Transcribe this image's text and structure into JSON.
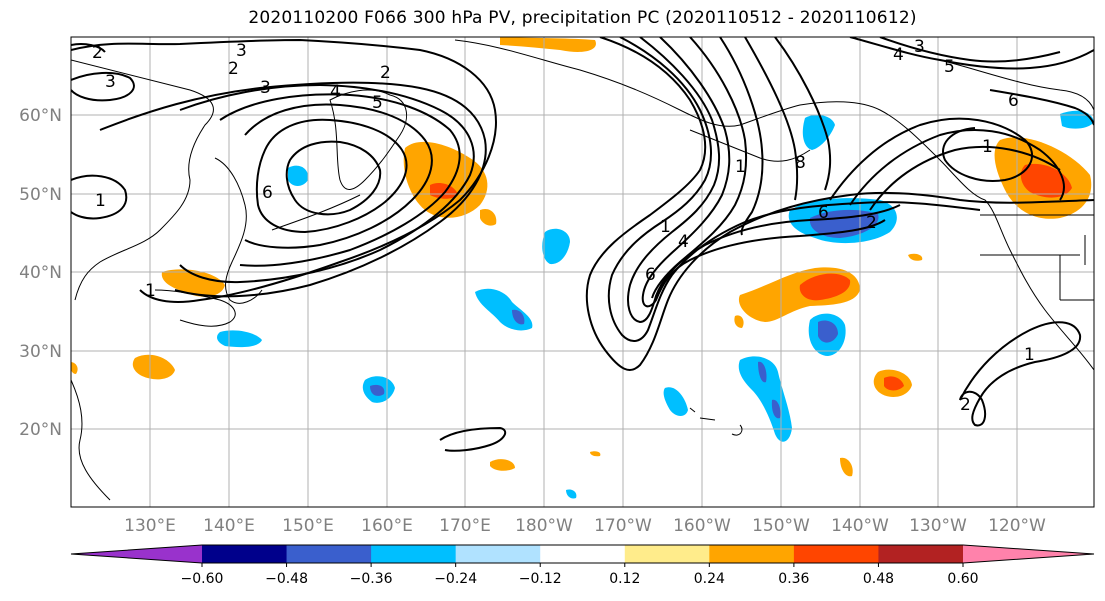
{
  "title": "2020110200 F066 300 hPa PV, precipitation PC (2020110512 - 2020110612)",
  "map": {
    "lat_ticks": [
      "60°N",
      "50°N",
      "40°N",
      "30°N",
      "20°N"
    ],
    "lon_ticks": [
      "130°E",
      "140°E",
      "150°E",
      "160°E",
      "170°E",
      "180°W",
      "170°W",
      "160°W",
      "150°W",
      "140°W",
      "130°W",
      "120°W"
    ],
    "contour_labels": [
      "3",
      "2",
      "2",
      "3",
      "3",
      "2",
      "4",
      "5",
      "1",
      "6",
      "1",
      "1",
      "4",
      "6",
      "1",
      "8",
      "6",
      "2",
      "5",
      "4",
      "3",
      "1",
      "6",
      "1",
      "2"
    ]
  },
  "colorbar": {
    "tick_labels": [
      "−0.60",
      "−0.48",
      "−0.36",
      "−0.24",
      "−0.12",
      "0.12",
      "0.24",
      "0.36",
      "0.48",
      "0.60"
    ],
    "colors": [
      "#9932cc",
      "#00008b",
      "#3a5fcd",
      "#00bfff",
      "#b0e2ff",
      "#ffffff",
      "#ffec8b",
      "#ffa500",
      "#ff4500",
      "#b22222",
      "#ff82ab"
    ]
  },
  "colors": {
    "grid": "#b0b0b0",
    "contour": "#000000",
    "coast": "#000000"
  }
}
